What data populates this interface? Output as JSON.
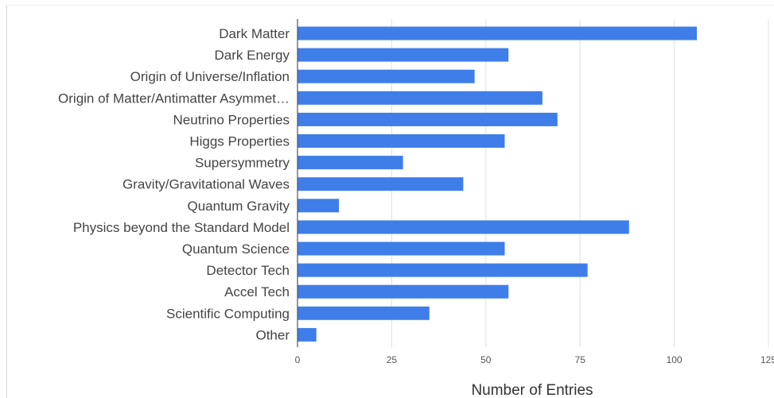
{
  "chart_data": {
    "type": "bar",
    "orientation": "horizontal",
    "categories": [
      "Dark Matter",
      "Dark Energy",
      "Origin of Universe/Inflation",
      "Origin of Matter/Antimatter Asymmet…",
      "Neutrino Properties",
      "Higgs Properties",
      "Supersymmetry",
      "Gravity/Gravitational Waves",
      "Quantum Gravity",
      "Physics beyond the Standard Model",
      "Quantum Science",
      "Detector Tech",
      "Accel Tech",
      "Scientific Computing",
      "Other"
    ],
    "values": [
      106,
      56,
      47,
      65,
      69,
      55,
      28,
      44,
      11,
      88,
      55,
      77,
      56,
      35,
      5
    ],
    "xlabel": "Number of Entries",
    "xlim": [
      0,
      125
    ],
    "xticks": [
      "0",
      "25",
      "50",
      "75",
      "100",
      "125"
    ],
    "grid": true,
    "legend": "none",
    "bar_color": "#3f7ee8",
    "grid_color": "#e0e0e0",
    "axis_color": "#555555"
  }
}
